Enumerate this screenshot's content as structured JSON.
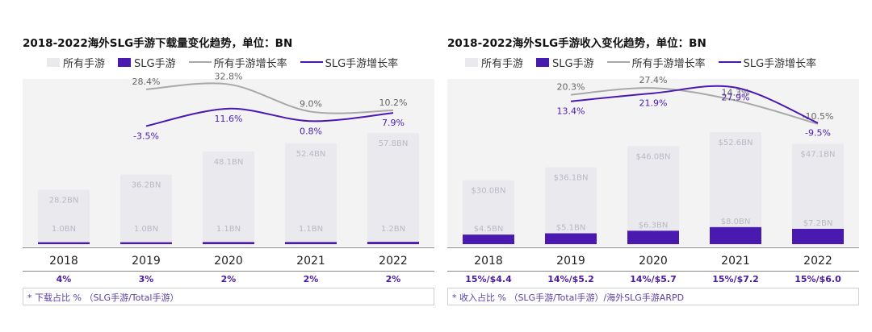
{
  "colors": {
    "gray_bar": "#e9e9ee",
    "purple_bar": "#4a1ab0",
    "gray_line": "#a8a8a8",
    "purple_line": "#4a1ab0",
    "bar_label": "#b9b9c4"
  },
  "chart_data": [
    {
      "type": "bar",
      "title": "2018-2022海外SLG手游下载量变化趋势，单位：BN",
      "categories": [
        "2018",
        "2019",
        "2020",
        "2021",
        "2022"
      ],
      "series": [
        {
          "name": "所有手游",
          "values": [
            28.2,
            36.2,
            48.1,
            52.4,
            57.8
          ],
          "labels": [
            "28.2BN",
            "36.2BN",
            "48.1BN",
            "52.4BN",
            "57.8BN"
          ]
        },
        {
          "name": "SLG手游",
          "values": [
            1.0,
            1.0,
            1.1,
            1.1,
            1.2
          ],
          "labels": [
            "1.0BN",
            "1.0BN",
            "1.1BN",
            "1.1BN",
            "1.2BN"
          ]
        },
        {
          "name": "所有手游增长率",
          "values": [
            28.4,
            32.8,
            9.0,
            10.2
          ],
          "x": [
            "2019",
            "2020",
            "2021",
            "2022"
          ],
          "labels": [
            "28.4%",
            "32.8%",
            "9.0%",
            "10.2%"
          ]
        },
        {
          "name": "SLG手游增长率",
          "values": [
            -3.5,
            11.6,
            0.8,
            7.9
          ],
          "x": [
            "2019",
            "2020",
            "2021",
            "2022"
          ],
          "labels": [
            "-3.5%",
            "11.6%",
            "0.8%",
            "7.9%"
          ]
        }
      ],
      "legend": [
        "所有手游",
        "SLG手游",
        "所有手游增长率",
        "SLG手游增长率"
      ],
      "legend_position": "top",
      "share_row": [
        "4%",
        "3%",
        "2%",
        "2%",
        "2%"
      ],
      "note": "* 下载占比 %  （SLG手游/Total手游）"
    },
    {
      "type": "bar",
      "title": "2018-2022海外SLG手游收入变化趋势，单位：BN",
      "categories": [
        "2018",
        "2019",
        "2020",
        "2021",
        "2022"
      ],
      "series": [
        {
          "name": "所有手游",
          "values": [
            30.0,
            36.1,
            46.0,
            52.6,
            47.1
          ],
          "labels": [
            "$30.0BN",
            "$36.1BN",
            "$46.0BN",
            "$52.6BN",
            "$47.1BN"
          ]
        },
        {
          "name": "SLG手游",
          "values": [
            4.5,
            5.1,
            6.3,
            8.0,
            7.2
          ],
          "labels": [
            "$4.5BN",
            "$5.1BN",
            "$6.3BN",
            "$8.0BN",
            "$7.2BN"
          ]
        },
        {
          "name": "所有手游增长率",
          "values": [
            20.3,
            27.4,
            14.3,
            -10.5
          ],
          "x": [
            "2019",
            "2020",
            "2021",
            "2022"
          ],
          "labels": [
            "20.3%",
            "27.4%",
            "14.3%",
            "-10.5%"
          ]
        },
        {
          "name": "SLG手游增长率",
          "values": [
            13.4,
            21.9,
            27.9,
            -9.5
          ],
          "x": [
            "2019",
            "2020",
            "2021",
            "2022"
          ],
          "labels": [
            "13.4%",
            "21.9%",
            "27.9%",
            "-9.5%"
          ]
        }
      ],
      "legend": [
        "所有手游",
        "SLG手游",
        "所有手游增长率",
        "SLG手游增长率"
      ],
      "legend_position": "top",
      "share_row": [
        "15%/$4.4",
        "14%/$5.2",
        "14%/$5.7",
        "15%/$7.2",
        "15%/$6.0"
      ],
      "note": "* 收入占比 %  （SLG手游/Total手游）/海外SLG手游ARPD"
    }
  ]
}
